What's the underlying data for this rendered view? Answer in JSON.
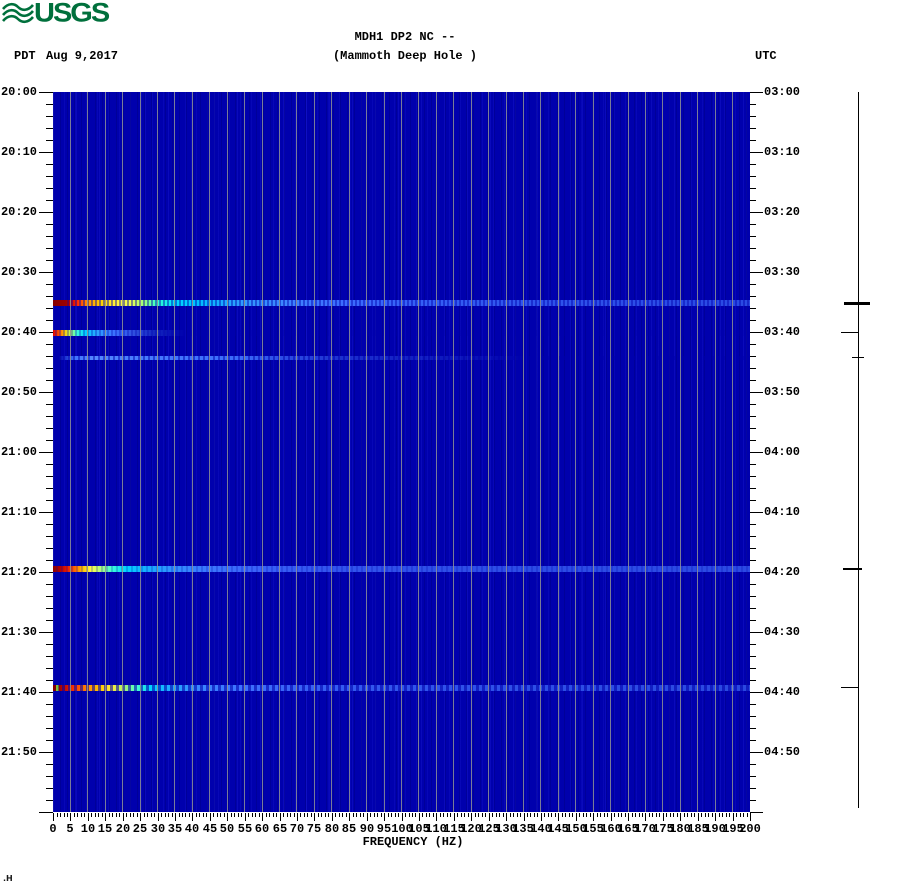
{
  "header": {
    "logo": "USGS",
    "tz_left": "PDT",
    "date": "Aug 9,2017",
    "title1": "MDH1 DP2 NC --",
    "title2": "(Mammoth Deep Hole )",
    "tz_right": "UTC"
  },
  "chart_data": {
    "type": "heatmap",
    "subtype": "seismic-spectrogram",
    "title": "MDH1 DP2 NC -- (Mammoth Deep Hole )",
    "xlabel": "FREQUENCY (HZ)",
    "x_range_hz": [
      0,
      200
    ],
    "x_tick_labels": [
      0,
      5,
      10,
      15,
      20,
      25,
      30,
      35,
      40,
      45,
      50,
      55,
      60,
      65,
      70,
      75,
      80,
      85,
      90,
      95,
      100,
      105,
      110,
      115,
      120,
      125,
      130,
      135,
      140,
      145,
      150,
      155,
      160,
      165,
      170,
      175,
      180,
      185,
      190,
      195,
      200
    ],
    "x_minor_tick_hz": 1,
    "grid": "vertical lines every 5 Hz",
    "y_left_axis": {
      "timezone": "PDT",
      "start": "20:00",
      "end": "22:00",
      "tick_interval_min": 10,
      "minor_tick_min": 2,
      "labels": [
        "20:00",
        "20:10",
        "20:20",
        "20:30",
        "20:40",
        "20:50",
        "21:00",
        "21:10",
        "21:20",
        "21:30",
        "21:40",
        "21:50"
      ]
    },
    "y_right_axis": {
      "timezone": "UTC",
      "labels": [
        "03:00",
        "03:10",
        "03:20",
        "03:30",
        "03:40",
        "03:50",
        "04:00",
        "04:10",
        "04:20",
        "04:30",
        "04:40",
        "04:50"
      ]
    },
    "palette": {
      "background_low": "#0000AD",
      "gridline": "#8E9294",
      "mid": "#00CFFF",
      "high": "#FFFF00",
      "max": "#8B0000"
    },
    "events": [
      {
        "time_pdt": "20:35",
        "time_utc": "03:35",
        "minute": 35.2,
        "freq_extent_hz": [
          0,
          200
        ],
        "peak_band_hz": [
          0,
          9
        ],
        "amplitude": "strong",
        "texture": "striped broadband",
        "marker": "wide"
      },
      {
        "time_pdt": "20:40",
        "time_utc": "03:40",
        "minute": 40.1,
        "freq_extent_hz": [
          0,
          36
        ],
        "peak_band_hz": [
          0,
          3
        ],
        "amplitude": "moderate",
        "texture": "smooth narrowband",
        "marker": "thin"
      },
      {
        "time_pdt": "20:44",
        "time_utc": "03:44",
        "minute": 44.3,
        "freq_extent_hz": [
          2,
          130
        ],
        "peak_band_hz": [
          5,
          55
        ],
        "amplitude": "weak",
        "texture": "faint blue dashes",
        "marker": "short"
      },
      {
        "time_pdt": "21:20",
        "time_utc": "04:20",
        "minute": 79.5,
        "freq_extent_hz": [
          0,
          200
        ],
        "peak_band_hz": [
          0,
          6
        ],
        "amplitude": "strong",
        "texture": "smooth broadband",
        "marker": "medium"
      },
      {
        "time_pdt": "21:40",
        "time_utc": "04:40",
        "minute": 99.3,
        "freq_extent_hz": [
          0,
          200
        ],
        "peak_band_hz": [
          0,
          13
        ],
        "amplitude": "moderate",
        "texture": "striped dashes",
        "marker": "thin"
      }
    ]
  },
  "footer": {
    "corner_mark": ".H"
  }
}
